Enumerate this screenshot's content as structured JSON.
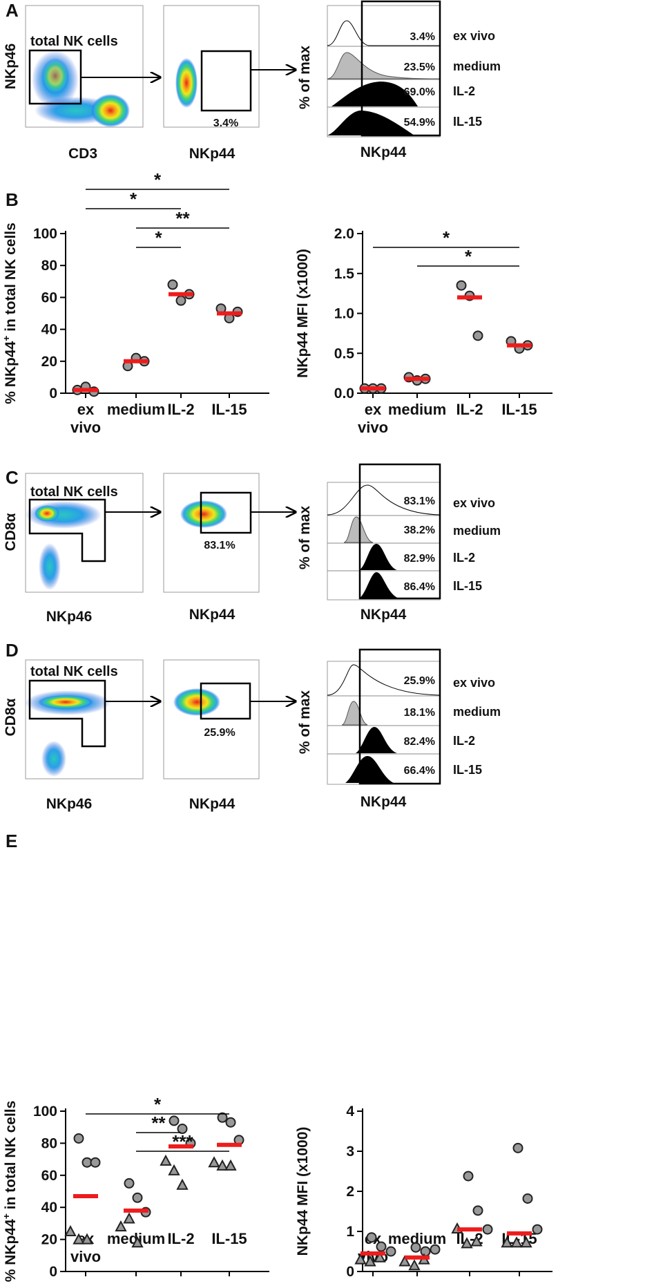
{
  "panels": {
    "A": "A",
    "B": "B",
    "C": "C",
    "D": "D",
    "E": "E"
  },
  "colors": {
    "median": "#ee1c1c",
    "dot": "#999999",
    "hist_medium": "#bbbbbb",
    "hist_cyto": "#000000"
  },
  "flow_rows": [
    {
      "id": "A",
      "gate_label": "total NK cells",
      "dot1": {
        "ylabel": "NKp46",
        "xlabel": "CD3"
      },
      "dot2": {
        "xlabel": "NKp44",
        "gate_pct": "3.4%"
      },
      "hist": {
        "ylabel": "% of max",
        "xlabel": "NKp44",
        "rows": [
          {
            "cond": "ex vivo",
            "pct": "3.4%"
          },
          {
            "cond": "medium",
            "pct": "23.5%"
          },
          {
            "cond": "IL-2",
            "pct": "69.0%"
          },
          {
            "cond": "IL-15",
            "pct": "54.9%"
          }
        ]
      }
    },
    {
      "id": "C",
      "gate_label": "total NK cells",
      "dot1": {
        "ylabel": "CD8α",
        "xlabel": "NKp46"
      },
      "dot2": {
        "xlabel": "NKp44",
        "gate_pct": "83.1%"
      },
      "hist": {
        "ylabel": "% of max",
        "xlabel": "NKp44",
        "rows": [
          {
            "cond": "ex vivo",
            "pct": "83.1%"
          },
          {
            "cond": "medium",
            "pct": "38.2%"
          },
          {
            "cond": "IL-2",
            "pct": "82.9%"
          },
          {
            "cond": "IL-15",
            "pct": "86.4%"
          }
        ]
      }
    },
    {
      "id": "D",
      "gate_label": "total NK cells",
      "dot1": {
        "ylabel": "CD8α",
        "xlabel": "NKp46"
      },
      "dot2": {
        "xlabel": "NKp44",
        "gate_pct": "25.9%"
      },
      "hist": {
        "ylabel": "% of max",
        "xlabel": "NKp44",
        "rows": [
          {
            "cond": "ex vivo",
            "pct": "25.9%"
          },
          {
            "cond": "medium",
            "pct": "18.1%"
          },
          {
            "cond": "IL-2",
            "pct": "82.4%"
          },
          {
            "cond": "IL-15",
            "pct": "66.4%"
          }
        ]
      }
    }
  ],
  "chart_data": [
    {
      "id": "B-left",
      "type": "scatter",
      "ylabel_main": "% NKp44",
      "ylabel_sup": "+",
      "ylabel_rest": " in total NK cells",
      "categories": [
        "ex vivo",
        "medium",
        "IL-2",
        "IL-15"
      ],
      "ylim": [
        0,
        100
      ],
      "yticks": [
        {
          "v": 0,
          "l": "0"
        },
        {
          "v": 20,
          "l": "20"
        },
        {
          "v": 40,
          "l": "40"
        },
        {
          "v": 60,
          "l": "60"
        },
        {
          "v": 80,
          "l": "80"
        },
        {
          "v": 100,
          "l": "100"
        }
      ],
      "points": [
        [
          2,
          4,
          1
        ],
        [
          17,
          22,
          20
        ],
        [
          68,
          58,
          62
        ],
        [
          53,
          47,
          51
        ]
      ],
      "medians": [
        2,
        20,
        62,
        50
      ],
      "markers": [
        [
          "c",
          "c",
          "c"
        ],
        [
          "c",
          "c",
          "c"
        ],
        [
          "c",
          "c",
          "c"
        ],
        [
          "c",
          "c",
          "c"
        ]
      ],
      "significance": [
        {
          "from": 1,
          "to": 2,
          "label": "*"
        },
        {
          "from": 1,
          "to": 3,
          "label": "**"
        },
        {
          "from": 0,
          "to": 2,
          "label": "*"
        },
        {
          "from": 0,
          "to": 3,
          "label": "*"
        }
      ]
    },
    {
      "id": "B-right",
      "type": "scatter",
      "ylabel_main": "NKp44 MFI (x1000)",
      "ylabel_sup": "",
      "ylabel_rest": "",
      "categories": [
        "ex vivo",
        "medium",
        "IL-2",
        "IL-15"
      ],
      "ylim": [
        0,
        2.0
      ],
      "yticks": [
        {
          "v": 0,
          "l": "0.0"
        },
        {
          "v": 0.5,
          "l": "0.5"
        },
        {
          "v": 1.0,
          "l": "1.0"
        },
        {
          "v": 1.5,
          "l": "1.5"
        },
        {
          "v": 2.0,
          "l": "2.0"
        }
      ],
      "points": [
        [
          0.06,
          0.06,
          0.06
        ],
        [
          0.2,
          0.16,
          0.18
        ],
        [
          1.35,
          1.22,
          0.72
        ],
        [
          0.65,
          0.56,
          0.6
        ]
      ],
      "medians": [
        0.06,
        0.18,
        1.2,
        0.6
      ],
      "markers": [
        [
          "c",
          "c",
          "c"
        ],
        [
          "c",
          "c",
          "c"
        ],
        [
          "c",
          "c",
          "c"
        ],
        [
          "c",
          "c",
          "c"
        ]
      ],
      "significance": [
        {
          "from": 1,
          "to": 3,
          "label": "*"
        },
        {
          "from": 0,
          "to": 3,
          "label": "*"
        }
      ]
    },
    {
      "id": "E-left",
      "type": "scatter",
      "ylabel_main": "% NKp44",
      "ylabel_sup": "+",
      "ylabel_rest": " in total NK cells",
      "categories": [
        "ex vivo",
        "medium",
        "IL-2",
        "IL-15"
      ],
      "ylim": [
        0,
        100
      ],
      "yticks": [
        {
          "v": 0,
          "l": "0"
        },
        {
          "v": 20,
          "l": "20"
        },
        {
          "v": 40,
          "l": "40"
        },
        {
          "v": 60,
          "l": "60"
        },
        {
          "v": 80,
          "l": "80"
        },
        {
          "v": 100,
          "l": "100"
        }
      ],
      "points": [
        [
          83,
          68,
          68,
          25,
          20,
          20
        ],
        [
          55,
          46,
          37,
          28,
          33,
          18
        ],
        [
          94,
          89,
          80,
          69,
          63,
          54
        ],
        [
          96,
          93,
          82,
          68,
          66,
          66
        ]
      ],
      "medians": [
        47,
        38,
        78,
        79
      ],
      "markers": [
        [
          "c",
          "c",
          "c",
          "t",
          "t",
          "t"
        ],
        [
          "c",
          "c",
          "c",
          "t",
          "t",
          "t"
        ],
        [
          "c",
          "c",
          "c",
          "t",
          "t",
          "t"
        ],
        [
          "c",
          "c",
          "c",
          "t",
          "t",
          "t"
        ]
      ],
      "significance": [
        {
          "from": 1,
          "to": 3,
          "label": "***"
        },
        {
          "from": 1,
          "to": 2,
          "label": "**"
        },
        {
          "from": 0,
          "to": 3,
          "label": "*"
        }
      ]
    },
    {
      "id": "E-right",
      "type": "scatter",
      "ylabel_main": "NKp44 MFI (x1000)",
      "ylabel_sup": "",
      "ylabel_rest": "",
      "categories": [
        "ex vivo",
        "medium",
        "IL-2",
        "IL-15"
      ],
      "ylim": [
        0,
        4
      ],
      "yticks": [
        {
          "v": 0,
          "l": "0"
        },
        {
          "v": 1,
          "l": "1"
        },
        {
          "v": 2,
          "l": "2"
        },
        {
          "v": 3,
          "l": "3"
        },
        {
          "v": 4,
          "l": "4"
        }
      ],
      "points": [
        [
          0.85,
          0.62,
          0.5,
          0.3,
          0.25,
          0.35
        ],
        [
          0.6,
          0.5,
          0.55,
          0.25,
          0.15,
          0.3
        ],
        [
          2.38,
          1.52,
          1.05,
          1.07,
          0.7,
          0.75
        ],
        [
          3.08,
          1.82,
          1.05,
          0.72,
          0.72,
          0.72
        ]
      ],
      "medians": [
        0.45,
        0.35,
        1.05,
        0.95
      ],
      "markers": [
        [
          "c",
          "c",
          "c",
          "t",
          "t",
          "t"
        ],
        [
          "c",
          "c",
          "c",
          "t",
          "t",
          "t"
        ],
        [
          "c",
          "c",
          "c",
          "t",
          "t",
          "t"
        ],
        [
          "c",
          "c",
          "c",
          "t",
          "t",
          "t"
        ]
      ],
      "significance": []
    }
  ]
}
